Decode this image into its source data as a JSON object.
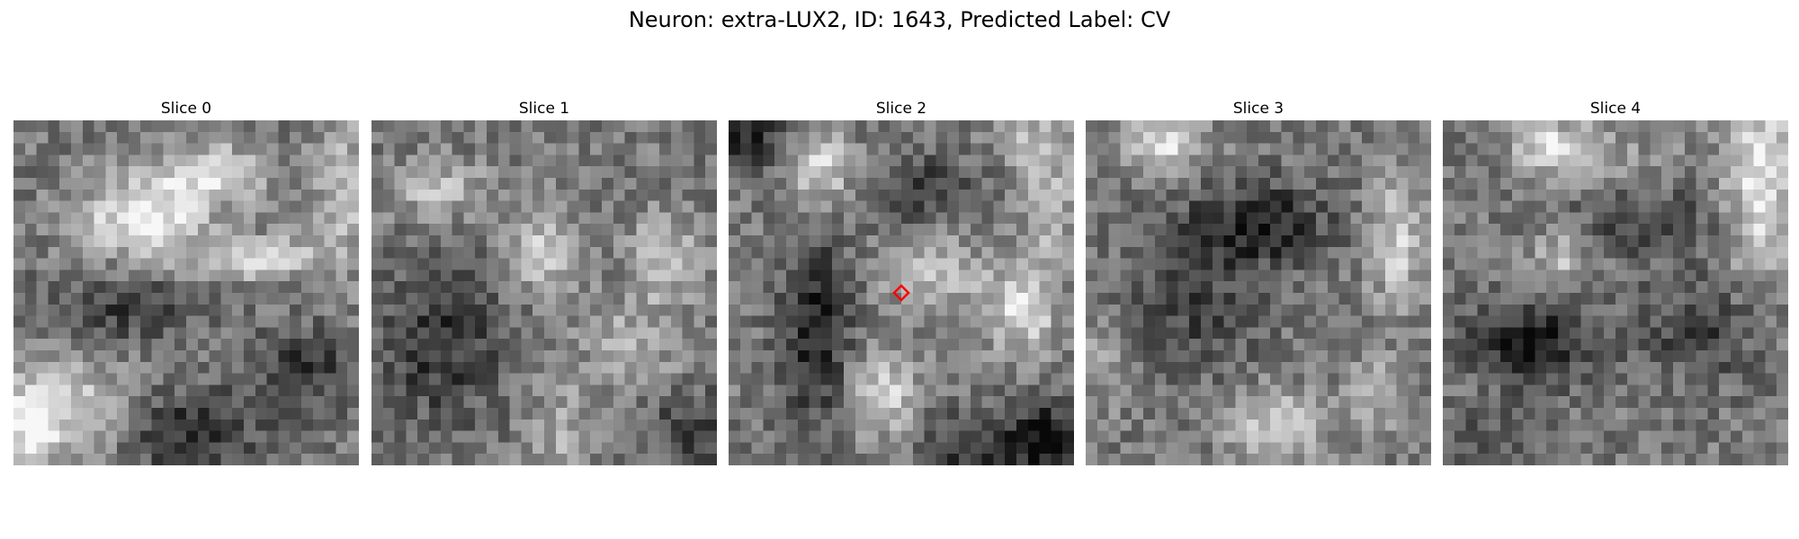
{
  "figure": {
    "title": "Neuron: extra-LUX2, ID: 1643, Predicted Label: CV"
  },
  "panels": [
    {
      "label": "Slice 0",
      "seed": 11,
      "features": [
        [
          0.38,
          0.28,
          0.5,
          0.18,
          0.12
        ],
        [
          0.58,
          0.15,
          0.4,
          0.14,
          0.08
        ],
        [
          0.72,
          0.4,
          0.38,
          0.18,
          0.06
        ],
        [
          0.14,
          0.84,
          0.35,
          0.22,
          0.14
        ],
        [
          0.5,
          0.9,
          -0.32,
          0.2,
          0.12
        ],
        [
          0.95,
          0.2,
          0.28,
          0.08,
          0.24
        ],
        [
          0.05,
          0.92,
          0.35,
          0.06,
          0.14
        ],
        [
          0.85,
          0.72,
          -0.25,
          0.15,
          0.12
        ],
        [
          0.3,
          0.55,
          -0.22,
          0.25,
          0.1
        ]
      ]
    },
    {
      "label": "Slice 1",
      "seed": 23,
      "features": [
        [
          0.5,
          0.38,
          0.34,
          0.1,
          0.12
        ],
        [
          0.85,
          0.4,
          0.32,
          0.1,
          0.12
        ],
        [
          0.2,
          0.65,
          -0.28,
          0.18,
          0.22
        ],
        [
          0.75,
          0.65,
          0.22,
          0.14,
          0.12
        ],
        [
          0.2,
          0.2,
          0.26,
          0.15,
          0.08
        ],
        [
          0.95,
          0.9,
          -0.26,
          0.15,
          0.1
        ],
        [
          0.55,
          0.9,
          0.2,
          0.1,
          0.14
        ]
      ]
    },
    {
      "label": "Slice 2",
      "seed": 37,
      "features": [
        [
          0.26,
          0.14,
          0.4,
          0.1,
          0.1
        ],
        [
          0.25,
          0.6,
          -0.34,
          0.1,
          0.28
        ],
        [
          0.6,
          0.45,
          0.24,
          0.16,
          0.12
        ],
        [
          0.45,
          0.8,
          0.36,
          0.1,
          0.12
        ],
        [
          0.85,
          0.55,
          0.4,
          0.1,
          0.12
        ],
        [
          0.92,
          0.22,
          0.26,
          0.08,
          0.2
        ],
        [
          0.92,
          0.92,
          -0.44,
          0.1,
          0.1
        ],
        [
          0.7,
          0.95,
          -0.3,
          0.15,
          0.1
        ],
        [
          0.55,
          0.2,
          -0.22,
          0.15,
          0.1
        ],
        [
          0.05,
          0.05,
          -0.3,
          0.12,
          0.1
        ],
        [
          0.85,
          0.05,
          0.2,
          0.08,
          0.06
        ]
      ]
    },
    {
      "label": "Slice 3",
      "seed": 53,
      "features": [
        [
          0.22,
          0.06,
          0.42,
          0.12,
          0.08
        ],
        [
          0.5,
          0.3,
          -0.36,
          0.2,
          0.12
        ],
        [
          0.9,
          0.35,
          0.34,
          0.08,
          0.18
        ],
        [
          0.55,
          0.88,
          0.34,
          0.14,
          0.1
        ],
        [
          0.3,
          0.55,
          -0.2,
          0.2,
          0.2
        ],
        [
          0.05,
          0.7,
          0.18,
          0.06,
          0.14
        ],
        [
          0.85,
          0.8,
          0.2,
          0.1,
          0.12
        ]
      ]
    },
    {
      "label": "Slice 4",
      "seed": 71,
      "features": [
        [
          0.32,
          0.08,
          0.42,
          0.12,
          0.08
        ],
        [
          0.92,
          0.18,
          0.44,
          0.1,
          0.28
        ],
        [
          0.34,
          0.4,
          0.3,
          0.08,
          0.08
        ],
        [
          0.25,
          0.65,
          -0.4,
          0.18,
          0.12
        ],
        [
          0.75,
          0.6,
          -0.22,
          0.18,
          0.15
        ],
        [
          0.6,
          0.3,
          -0.2,
          0.2,
          0.1
        ],
        [
          0.1,
          0.95,
          -0.15,
          0.15,
          0.1
        ],
        [
          0.55,
          0.1,
          0.1,
          0.15,
          0.08
        ]
      ]
    }
  ],
  "marker": {
    "panel_index": 2,
    "color": "#ff0000",
    "shape": "diamond"
  },
  "colormap": "gray"
}
